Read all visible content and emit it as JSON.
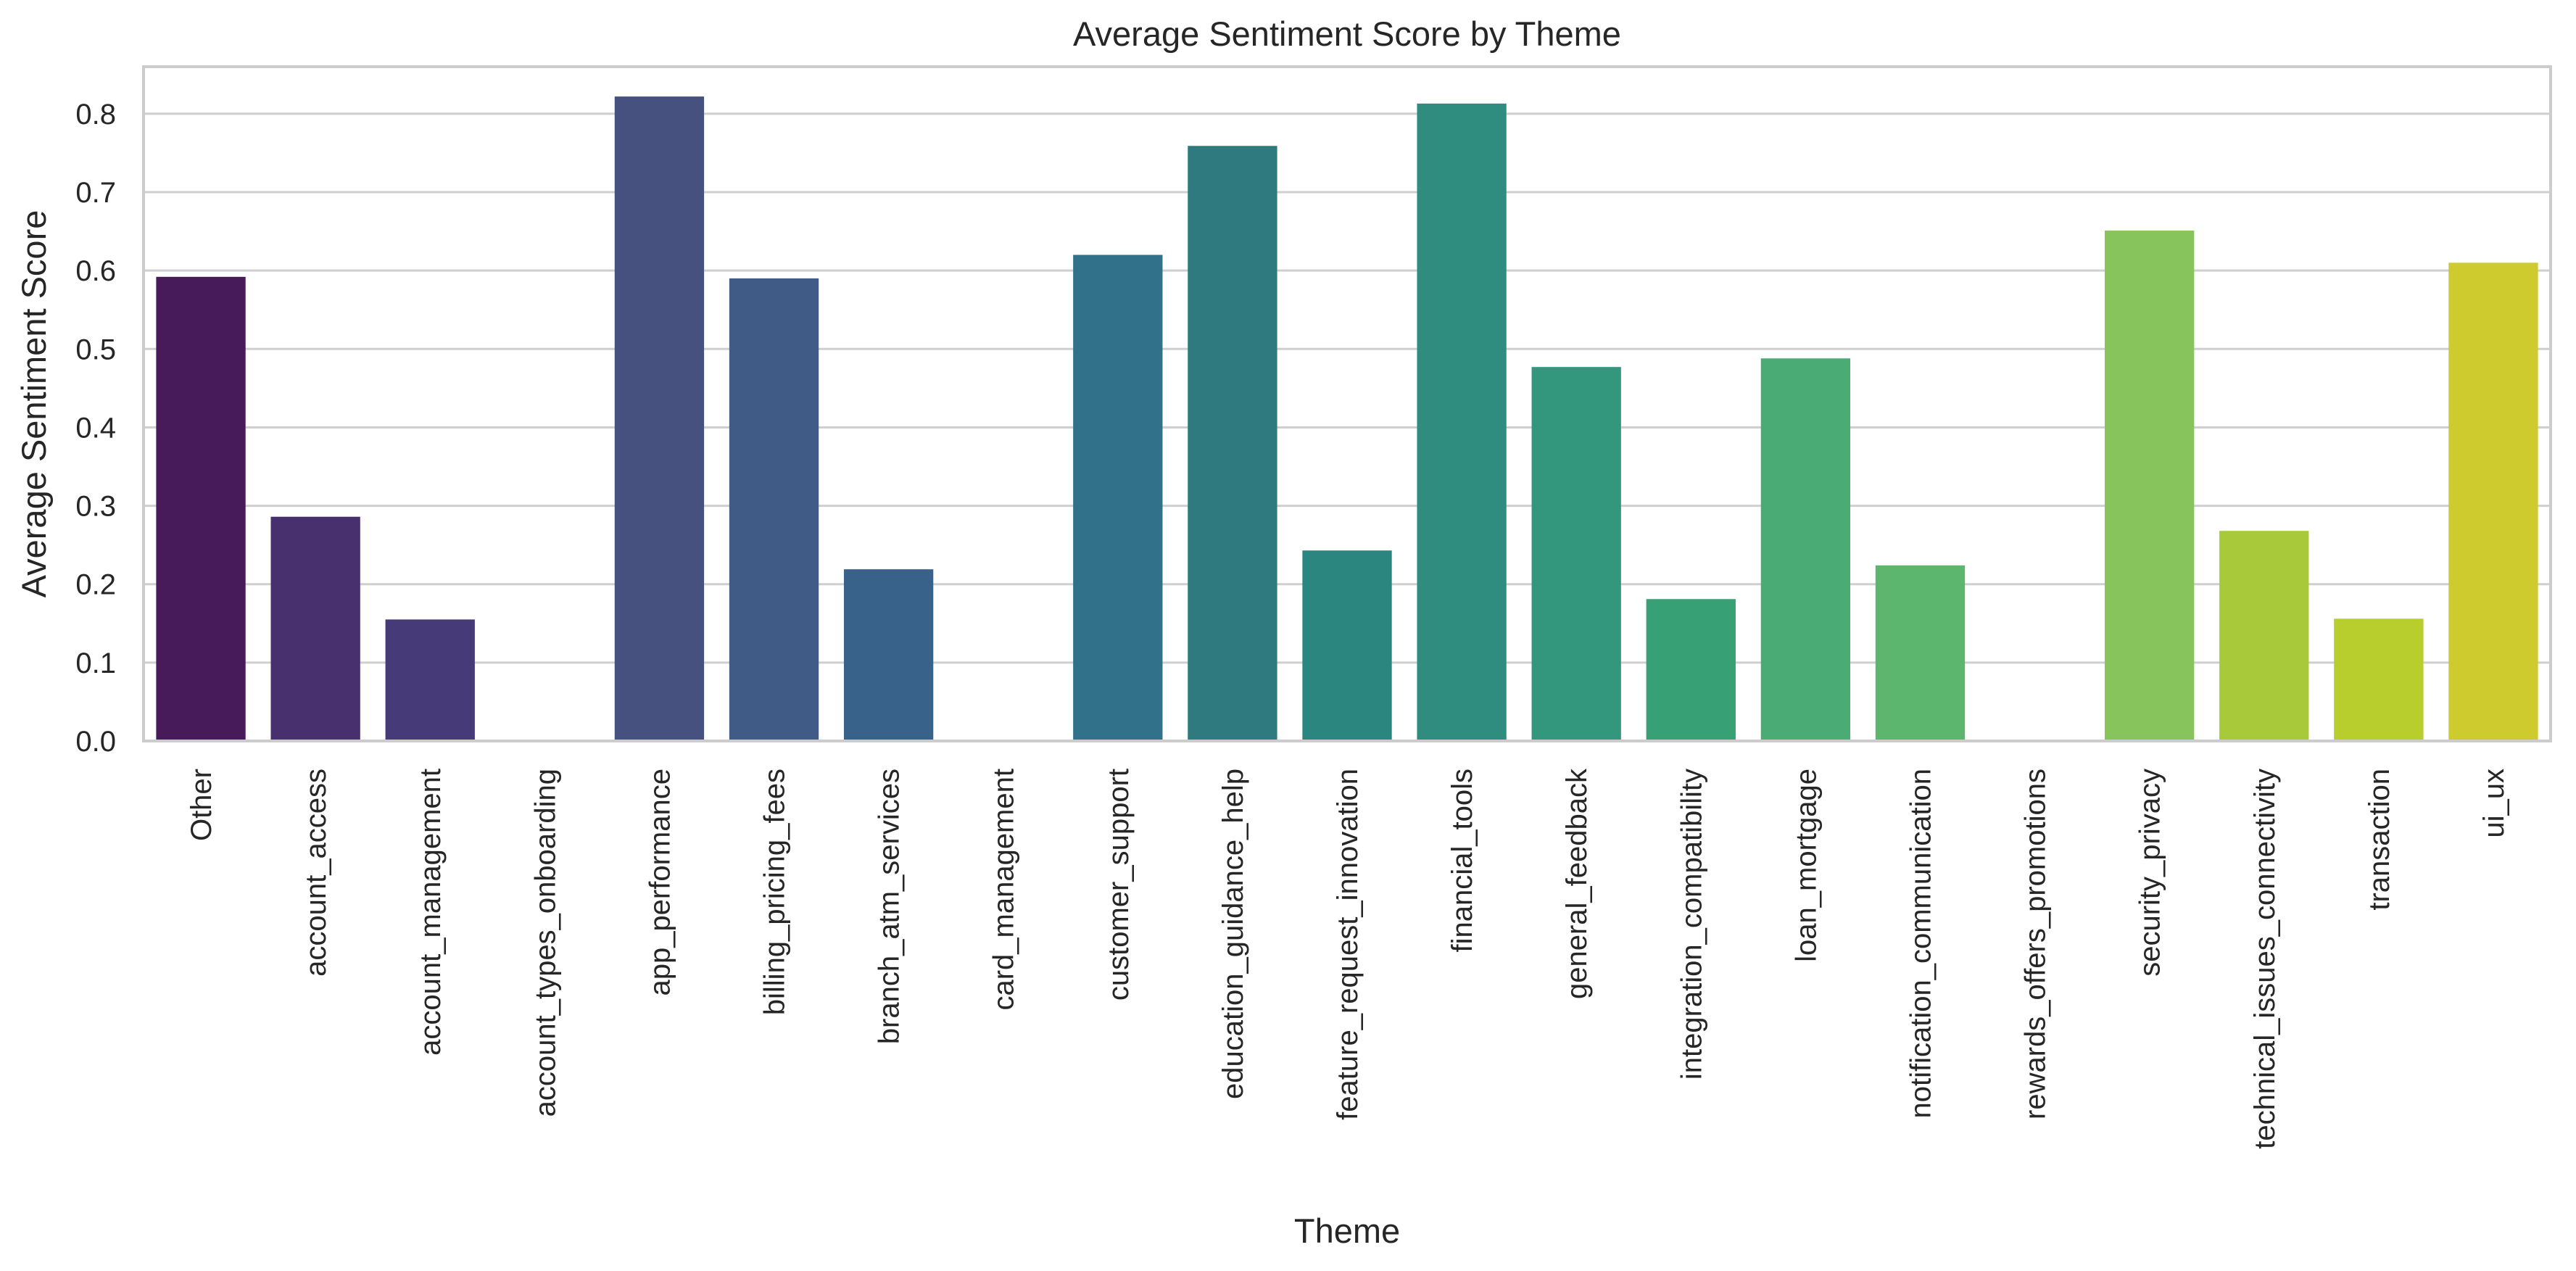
{
  "chart_data": {
    "type": "bar",
    "title": "Average Sentiment Score by Theme",
    "xlabel": "Theme",
    "ylabel": "Average Sentiment Score",
    "ylim": [
      0,
      0.86
    ],
    "yticks": [
      "0.0",
      "0.1",
      "0.2",
      "0.3",
      "0.4",
      "0.5",
      "0.6",
      "0.7",
      "0.8"
    ],
    "grid": "horizontal",
    "categories": [
      "Other",
      "account_access",
      "account_management",
      "account_types_onboarding",
      "app_performance",
      "billing_pricing_fees",
      "branch_atm_services",
      "card_management",
      "customer_support",
      "education_guidance_help",
      "feature_request_innovation",
      "financial_tools",
      "general_feedback",
      "integration_compatibility",
      "loan_mortgage",
      "notification_communication",
      "rewards_offers_promotions",
      "security_privacy",
      "technical_issues_connectivity",
      "transaction",
      "ui_ux"
    ],
    "values": [
      0.592,
      0.286,
      0.155,
      0.0,
      0.822,
      0.59,
      0.219,
      0.0,
      0.62,
      0.759,
      0.243,
      0.813,
      0.477,
      0.181,
      0.488,
      0.224,
      0.0,
      0.651,
      0.268,
      0.156,
      0.61
    ],
    "colors": [
      "#471a5a",
      "#482f6d",
      "#463b78",
      "#404d81",
      "#46517f",
      "#405b86",
      "#38628a",
      "#2f6b8c",
      "#31718a",
      "#2e7a7e",
      "#2b8680",
      "#2f8d7f",
      "#33977d",
      "#37a175",
      "#4aab74",
      "#5db66d",
      "#77c25f",
      "#88c45c",
      "#a7c93a",
      "#b7ce2c",
      "#cdcb2d"
    ]
  }
}
